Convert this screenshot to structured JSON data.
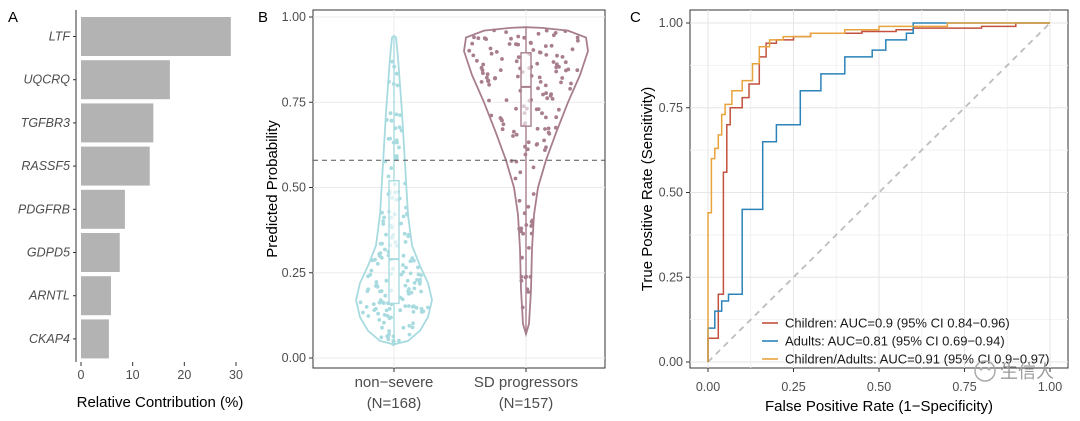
{
  "chart_data": [
    {
      "panel": "A",
      "type": "bar",
      "orientation": "horizontal",
      "categories": [
        "LTF",
        "UQCRQ",
        "TGFBR3",
        "RASSF5",
        "PDGFRB",
        "GDPD5",
        "ARNTL",
        "CKAP4"
      ],
      "values": [
        29,
        17.2,
        14,
        13.3,
        8.5,
        7.5,
        5.8,
        5.4
      ],
      "xlabel": "Relative Contribution (%)",
      "xlim": [
        0,
        30
      ],
      "xticks": [
        "0",
        "10",
        "20",
        "30"
      ],
      "bar_color": "#b3b3b3"
    },
    {
      "panel": "B",
      "type": "violin",
      "ylabel": "Predicted Probability",
      "ylim": [
        0,
        1
      ],
      "yticks": [
        "0.00",
        "0.25",
        "0.50",
        "0.75",
        "1.00"
      ],
      "threshold": 0.58,
      "groups": [
        {
          "name": "non−severe",
          "n_label": "(N=168)",
          "n": 168,
          "color": "#a8dbe0",
          "box": {
            "q1": 0.16,
            "median": 0.29,
            "q3": 0.52,
            "whisker_low": 0.04,
            "whisker_high": 0.94
          }
        },
        {
          "name": "SD progressors",
          "n_label": "(N=157)",
          "n": 157,
          "color": "#a87e8e",
          "box": {
            "q1": 0.68,
            "median": 0.795,
            "q3": 0.895,
            "whisker_low": 0.08,
            "whisker_high": 0.97
          }
        }
      ]
    },
    {
      "panel": "C",
      "type": "line",
      "xlabel": "False Positive Rate (1−Specificity)",
      "ylabel": "True Positive Rate (Sensitivity)",
      "xlim": [
        0,
        1
      ],
      "ylim": [
        0,
        1
      ],
      "xticks": [
        "0.00",
        "0.25",
        "0.50",
        "0.75",
        "1.00"
      ],
      "yticks": [
        "0.00",
        "0.25",
        "0.50",
        "0.75",
        "1.00"
      ],
      "series": [
        {
          "name": "Children: AUC=0.9 (95% CI 0.84−0.96)",
          "color": "#c2513d",
          "x": [
            0,
            0,
            0.03,
            0.03,
            0.045,
            0.045,
            0.055,
            0.055,
            0.065,
            0.065,
            0.1,
            0.1,
            0.12,
            0.12,
            0.15,
            0.15,
            0.17,
            0.17,
            0.2,
            0.2,
            0.25,
            0.25,
            0.3,
            0.3,
            0.45,
            0.45,
            0.55,
            0.55,
            0.6,
            0.6,
            0.8,
            0.8,
            0.9,
            0.9,
            1
          ],
          "y": [
            0,
            0.07,
            0.07,
            0.2,
            0.2,
            0.56,
            0.56,
            0.7,
            0.7,
            0.75,
            0.75,
            0.78,
            0.78,
            0.82,
            0.82,
            0.9,
            0.9,
            0.94,
            0.94,
            0.95,
            0.95,
            0.96,
            0.96,
            0.97,
            0.97,
            0.975,
            0.975,
            0.98,
            0.98,
            0.985,
            0.985,
            0.99,
            0.99,
            1,
            1
          ]
        },
        {
          "name": "Adults: AUC=0.81 (95% CI 0.69−0.94)",
          "color": "#2b83ba",
          "x": [
            0,
            0,
            0.02,
            0.02,
            0.04,
            0.04,
            0.06,
            0.06,
            0.1,
            0.1,
            0.16,
            0.16,
            0.2,
            0.2,
            0.27,
            0.27,
            0.33,
            0.33,
            0.4,
            0.4,
            0.48,
            0.48,
            0.52,
            0.52,
            0.58,
            0.58,
            0.6,
            0.6,
            1
          ],
          "y": [
            0,
            0.1,
            0.1,
            0.15,
            0.15,
            0.18,
            0.18,
            0.2,
            0.2,
            0.45,
            0.45,
            0.65,
            0.65,
            0.7,
            0.7,
            0.8,
            0.8,
            0.85,
            0.85,
            0.9,
            0.9,
            0.92,
            0.92,
            0.95,
            0.95,
            0.97,
            0.97,
            1,
            1
          ]
        },
        {
          "name": "Children/Adults: AUC=0.91 (95% CI 0.9−0.97)",
          "color": "#e8a33d",
          "x": [
            0,
            0,
            0.01,
            0.01,
            0.02,
            0.02,
            0.03,
            0.03,
            0.04,
            0.04,
            0.05,
            0.05,
            0.07,
            0.07,
            0.1,
            0.1,
            0.13,
            0.13,
            0.15,
            0.15,
            0.18,
            0.18,
            0.22,
            0.22,
            0.3,
            0.3,
            0.4,
            0.4,
            0.5,
            0.5,
            0.7,
            0.7,
            1
          ],
          "y": [
            0,
            0.44,
            0.44,
            0.6,
            0.6,
            0.63,
            0.63,
            0.67,
            0.67,
            0.73,
            0.73,
            0.76,
            0.76,
            0.8,
            0.8,
            0.83,
            0.83,
            0.88,
            0.88,
            0.93,
            0.93,
            0.95,
            0.95,
            0.96,
            0.96,
            0.97,
            0.97,
            0.98,
            0.98,
            0.99,
            0.99,
            1,
            1
          ]
        }
      ],
      "reference_line": "diagonal dashed"
    }
  ],
  "panels": {
    "a": "A",
    "b": "B",
    "c": "C"
  },
  "watermark": "生信人"
}
